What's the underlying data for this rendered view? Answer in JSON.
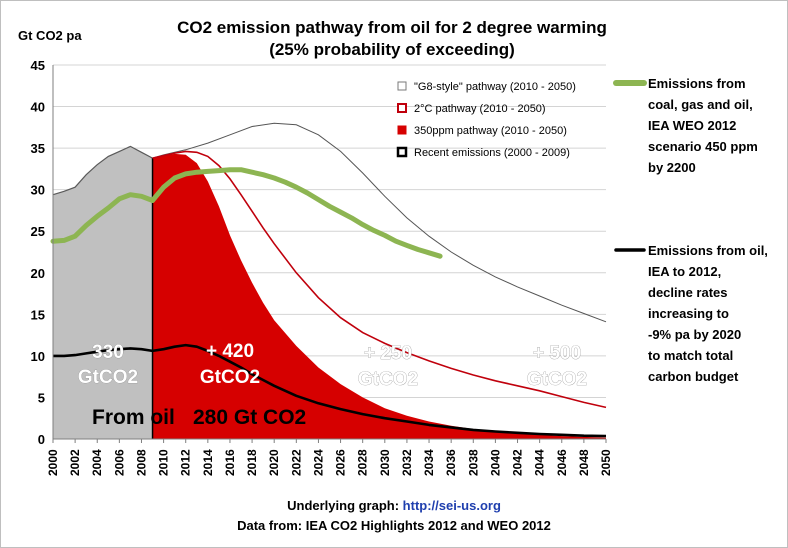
{
  "chart_data": {
    "type": "area",
    "title": "CO2 emission pathway from oil for 2 degree warming",
    "subtitle": "(25% probability of exceeding)",
    "ylabel": "Gt CO2 pa",
    "xlabel": "",
    "ylim": [
      0,
      45
    ],
    "xlim": [
      2000,
      2050
    ],
    "y_ticks": [
      0,
      5,
      10,
      15,
      20,
      25,
      30,
      35,
      40,
      45
    ],
    "x_ticks": [
      2000,
      2002,
      2004,
      2006,
      2008,
      2010,
      2012,
      2014,
      2016,
      2018,
      2020,
      2022,
      2024,
      2026,
      2028,
      2030,
      2032,
      2034,
      2036,
      2038,
      2040,
      2042,
      2044,
      2046,
      2048,
      2050
    ],
    "grid": "horizontal",
    "legend_position": "top-right",
    "series": [
      {
        "name": "Recent emissions (2000 - 2009)",
        "style": "grey-area",
        "color": "#c0c0c0",
        "x": [
          2000,
          2001,
          2002,
          2003,
          2004,
          2005,
          2006,
          2007,
          2008,
          2009
        ],
        "y": [
          29.4,
          29.8,
          30.3,
          31.8,
          33.0,
          34.0,
          34.6,
          35.2,
          34.5,
          33.8
        ]
      },
      {
        "name": "350ppm pathway (2010 - 2050)",
        "style": "red-area",
        "color": "#d60000",
        "x": [
          2009,
          2010,
          2011,
          2012,
          2013,
          2014,
          2015,
          2016,
          2017,
          2018,
          2019,
          2020,
          2022,
          2024,
          2026,
          2028,
          2030,
          2032,
          2034,
          2036,
          2038,
          2040,
          2042,
          2044,
          2046,
          2048,
          2050
        ],
        "y": [
          33.8,
          34.1,
          34.3,
          34.2,
          33.2,
          31.0,
          28.0,
          24.5,
          21.5,
          18.8,
          16.4,
          14.3,
          11.2,
          8.6,
          6.6,
          5.0,
          3.7,
          2.8,
          2.1,
          1.6,
          1.2,
          0.9,
          0.7,
          0.5,
          0.35,
          0.25,
          0.15
        ]
      },
      {
        "name": "2°C pathway (2010 - 2050)",
        "style": "red-line",
        "color": "#c0000c",
        "x": [
          2009,
          2010,
          2011,
          2012,
          2013,
          2014,
          2015,
          2016,
          2017,
          2018,
          2019,
          2020,
          2022,
          2024,
          2026,
          2028,
          2030,
          2032,
          2034,
          2036,
          2038,
          2040,
          2042,
          2044,
          2046,
          2048,
          2050
        ],
        "y": [
          33.8,
          34.1,
          34.4,
          34.6,
          34.5,
          34.0,
          32.9,
          31.3,
          29.4,
          27.4,
          25.4,
          23.5,
          20.0,
          17.0,
          14.6,
          12.8,
          11.5,
          10.4,
          9.4,
          8.5,
          7.7,
          7.0,
          6.4,
          5.8,
          5.1,
          4.4,
          3.8
        ]
      },
      {
        "name": "\"G8-style\" pathway (2010 - 2050)",
        "style": "grey-line",
        "color": "#555555",
        "x": [
          2009,
          2010,
          2012,
          2014,
          2016,
          2018,
          2020,
          2022,
          2024,
          2026,
          2028,
          2030,
          2032,
          2034,
          2036,
          2038,
          2040,
          2042,
          2044,
          2046,
          2048,
          2050
        ],
        "y": [
          33.8,
          34.2,
          34.8,
          35.6,
          36.6,
          37.6,
          38.0,
          37.8,
          36.6,
          34.6,
          32.0,
          29.2,
          26.6,
          24.4,
          22.5,
          20.9,
          19.5,
          18.3,
          17.2,
          16.1,
          15.1,
          14.1
        ]
      },
      {
        "name": "Emissions from coal, gas and oil, IEA WEO 2012 scenario 450 ppm by 2200",
        "style": "green-line",
        "color": "#8db552",
        "x": [
          2000,
          2001,
          2002,
          2003,
          2004,
          2005,
          2006,
          2007,
          2008,
          2009,
          2010,
          2011,
          2012,
          2013,
          2014,
          2015,
          2016,
          2017,
          2018,
          2019,
          2020,
          2021,
          2022,
          2023,
          2024,
          2025,
          2026,
          2027,
          2028,
          2029,
          2030,
          2031,
          2032,
          2033,
          2034,
          2035
        ],
        "y": [
          23.8,
          23.9,
          24.4,
          25.7,
          26.8,
          27.8,
          28.9,
          29.4,
          29.2,
          28.7,
          30.3,
          31.4,
          31.9,
          32.1,
          32.2,
          32.3,
          32.4,
          32.4,
          32.1,
          31.8,
          31.4,
          30.9,
          30.3,
          29.6,
          28.8,
          28.0,
          27.3,
          26.6,
          25.8,
          25.1,
          24.5,
          23.8,
          23.3,
          22.8,
          22.4,
          22.0
        ]
      },
      {
        "name": "Emissions from oil, IEA to 2012, decline rates increasing to -9% pa by 2020 to match total carbon budget",
        "style": "black-line",
        "color": "#000000",
        "x": [
          2000,
          2001,
          2002,
          2003,
          2004,
          2005,
          2006,
          2007,
          2008,
          2009,
          2010,
          2011,
          2012,
          2013,
          2014,
          2015,
          2016,
          2017,
          2018,
          2019,
          2020,
          2022,
          2024,
          2026,
          2028,
          2030,
          2032,
          2034,
          2036,
          2038,
          2040,
          2042,
          2044,
          2046,
          2048,
          2050
        ],
        "y": [
          10.0,
          10.0,
          10.1,
          10.3,
          10.5,
          10.7,
          10.8,
          10.9,
          10.8,
          10.6,
          10.8,
          11.1,
          11.3,
          11.1,
          10.6,
          10.0,
          9.3,
          8.6,
          7.8,
          7.1,
          6.4,
          5.2,
          4.3,
          3.6,
          3.0,
          2.5,
          2.1,
          1.7,
          1.4,
          1.1,
          0.9,
          0.75,
          0.6,
          0.5,
          0.4,
          0.35
        ]
      }
    ],
    "legend": [
      "\"G8-style\" pathway (2010 - 2050)",
      "2°C pathway (2010 - 2050)",
      "350ppm pathway (2010 - 2050)",
      "Recent emissions (2000 - 2009)"
    ],
    "annotations": {
      "grey_budget_number": "330",
      "grey_budget_unit": "GtCO2",
      "red_budget_number": "+ 420",
      "red_budget_unit": "GtCO2",
      "mid_budget_number": "+ 250",
      "mid_budget_unit": "GtCO2",
      "outer_budget_number": "+ 500",
      "outer_budget_unit": "GtCO2",
      "oil_label_prefix": "From oil",
      "oil_label_value": "280 Gt CO2"
    },
    "side_notes": {
      "green": [
        "Emissions from",
        "coal, gas and oil,",
        "IEA WEO 2012",
        "scenario 450 ppm",
        "by 2200"
      ],
      "black": [
        "Emissions from oil,",
        "IEA to 2012,",
        "decline rates",
        "increasing to",
        "-9% pa by 2020",
        "to match total",
        "carbon budget"
      ]
    },
    "footer": {
      "source_prefix": "Underlying graph: ",
      "source_link": "http://sei-us.org",
      "data_source": "Data from: IEA CO2 Highlights 2012 and WEO 2012"
    }
  }
}
